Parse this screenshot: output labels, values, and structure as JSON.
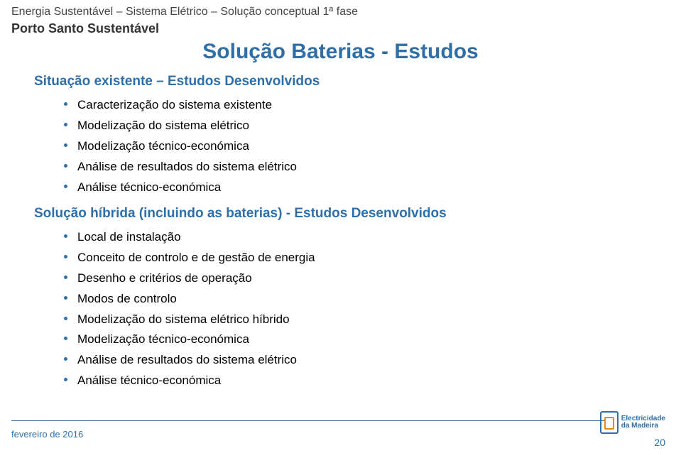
{
  "breadcrumb": "Energia Sustentável – Sistema Elétrico – Solução conceptual 1ª fase",
  "subtitle": "Porto Santo Sustentável",
  "title": "Solução Baterias - Estudos",
  "section1_heading": "Situação existente – Estudos Desenvolvidos",
  "section1_items": [
    "Caracterização do sistema existente",
    "Modelização do sistema elétrico",
    "Modelização técnico-económica",
    "Análise de resultados do sistema elétrico",
    "Análise técnico-económica"
  ],
  "section2_heading": "Solução híbrida (incluindo as baterias) - Estudos Desenvolvidos",
  "section2_items": [
    "Local de instalação",
    "Conceito de controlo e de gestão de energia",
    "Desenho e critérios de operação",
    "Modos de controlo",
    "Modelização do sistema elétrico híbrido",
    "Modelização técnico-económica",
    "Análise de resultados do sistema elétrico",
    "Análise técnico-económica"
  ],
  "footer_date": "fevereiro de 2016",
  "page_number": "20",
  "logo_line1": "Electricidade",
  "logo_line2": "da Madeira",
  "colors": {
    "accent": "#2f6fa7",
    "logo_orange": "#e08a1e",
    "text": "#000000",
    "background": "#ffffff"
  }
}
